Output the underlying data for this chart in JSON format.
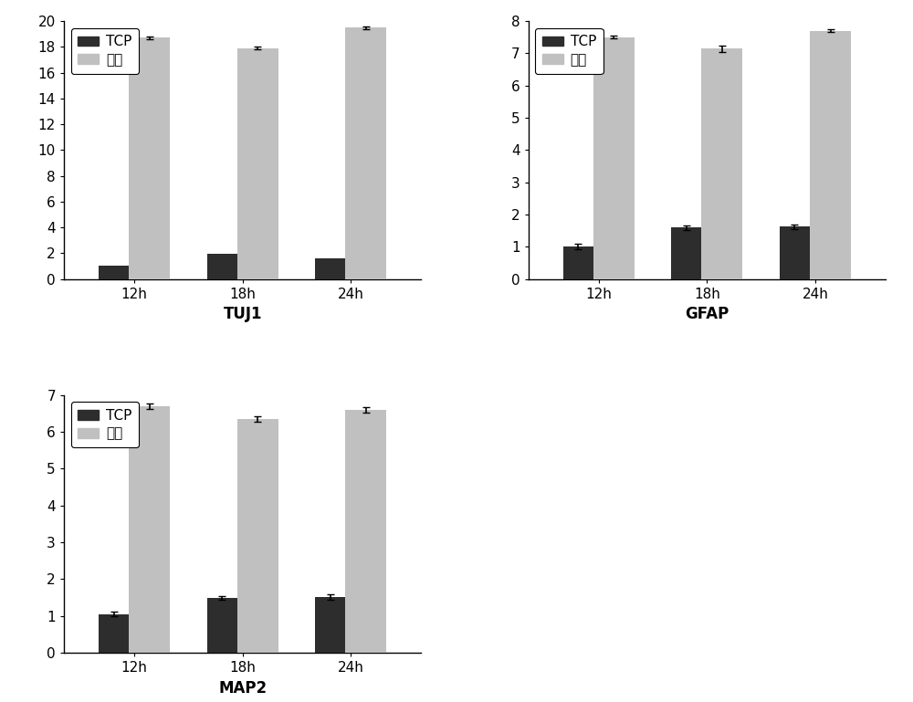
{
  "charts": [
    {
      "title": "TUJ1",
      "ylim": [
        0,
        20
      ],
      "yticks": [
        0,
        2,
        4,
        6,
        8,
        10,
        12,
        14,
        16,
        18,
        20
      ],
      "categories": [
        "12h",
        "18h",
        "24h"
      ],
      "tcp_values": [
        1.0,
        1.95,
        1.6
      ],
      "ming_values": [
        18.7,
        17.9,
        19.5
      ],
      "tcp_errors": [
        0.0,
        0.0,
        0.0
      ],
      "ming_errors": [
        0.12,
        0.12,
        0.1
      ]
    },
    {
      "title": "GFAP",
      "ylim": [
        0,
        8
      ],
      "yticks": [
        0,
        1,
        2,
        3,
        4,
        5,
        6,
        7,
        8
      ],
      "categories": [
        "12h",
        "18h",
        "24h"
      ],
      "tcp_values": [
        1.0,
        1.6,
        1.62
      ],
      "ming_values": [
        7.5,
        7.15,
        7.7
      ],
      "tcp_errors": [
        0.08,
        0.07,
        0.07
      ],
      "ming_errors": [
        0.05,
        0.1,
        0.05
      ]
    },
    {
      "title": "MAP2",
      "ylim": [
        0,
        7
      ],
      "yticks": [
        0,
        1,
        2,
        3,
        4,
        5,
        6,
        7
      ],
      "categories": [
        "12h",
        "18h",
        "24h"
      ],
      "tcp_values": [
        1.05,
        1.5,
        1.52
      ],
      "ming_values": [
        6.7,
        6.35,
        6.6
      ],
      "tcp_errors": [
        0.06,
        0.05,
        0.07
      ],
      "ming_errors": [
        0.07,
        0.07,
        0.08
      ]
    }
  ],
  "tcp_color": "#2d2d2d",
  "ming_color": "#c0c0c0",
  "tcp_bar_width": 0.28,
  "ming_bar_width": 0.38,
  "legend_tcp": "TCP",
  "legend_ming": "明胶",
  "xlabel_fontsize": 12,
  "tick_fontsize": 11,
  "legend_fontsize": 11,
  "background_color": "#ffffff"
}
